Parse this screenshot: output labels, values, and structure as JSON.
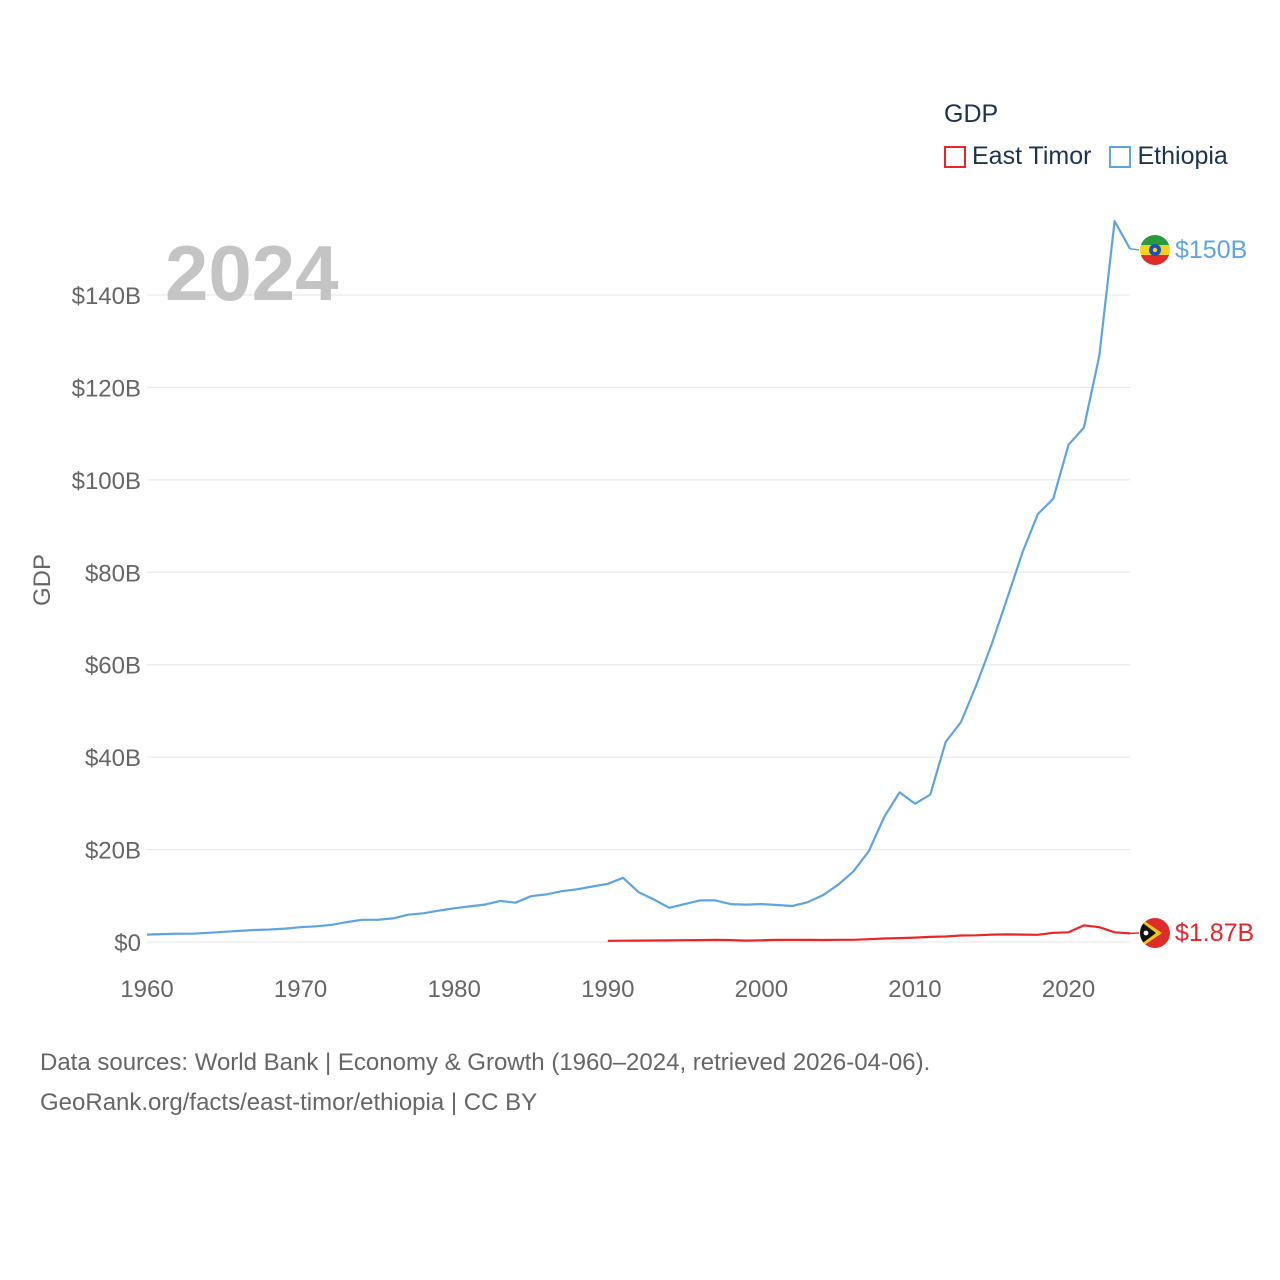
{
  "legend": {
    "title": "GDP",
    "items": [
      {
        "name": "East Timor",
        "color": "#e8262a"
      },
      {
        "name": "Ethiopia",
        "color": "#5ea4e3"
      }
    ]
  },
  "year_display": "2024",
  "source_line1": "Data sources: World Bank | Economy & Growth (1960–2024, retrieved 2026-04-06).",
  "source_line2": "GeoRank.org/facts/east-timor/ethiopia | CC BY",
  "chart_data": {
    "type": "line",
    "ylabel": "GDP",
    "xlabel": "",
    "xlim": [
      1960,
      2024
    ],
    "ylim": [
      0,
      150
    ],
    "x_ticks": [
      "1960",
      "1970",
      "1980",
      "1990",
      "2000",
      "2010",
      "2020"
    ],
    "y_ticks": [
      "$0",
      "$20B",
      "$40B",
      "$60B",
      "$80B",
      "$100B",
      "$120B",
      "$140B"
    ],
    "y_tick_values": [
      0,
      20,
      40,
      60,
      80,
      100,
      120,
      140
    ],
    "units": "billion USD",
    "series": [
      {
        "name": "Ethiopia",
        "color": "#5ea4e3",
        "end_label": "$150B",
        "flag": "ethiopia-flag",
        "x": [
          1960,
          1961,
          1962,
          1963,
          1964,
          1965,
          1966,
          1967,
          1968,
          1969,
          1970,
          1971,
          1972,
          1973,
          1974,
          1975,
          1976,
          1977,
          1978,
          1979,
          1980,
          1981,
          1982,
          1983,
          1984,
          1985,
          1986,
          1987,
          1988,
          1989,
          1990,
          1991,
          1992,
          1993,
          1994,
          1995,
          1996,
          1997,
          1998,
          1999,
          2000,
          2001,
          2002,
          2003,
          2004,
          2005,
          2006,
          2007,
          2008,
          2009,
          2010,
          2011,
          2012,
          2013,
          2014,
          2015,
          2016,
          2017,
          2018,
          2019,
          2020,
          2021,
          2022,
          2023,
          2024
        ],
        "values": [
          1.6,
          1.7,
          1.8,
          1.8,
          2.0,
          2.2,
          2.4,
          2.6,
          2.7,
          2.9,
          3.2,
          3.4,
          3.7,
          4.3,
          4.8,
          4.8,
          5.1,
          5.9,
          6.2,
          6.8,
          7.3,
          7.7,
          8.1,
          8.9,
          8.5,
          9.9,
          10.3,
          11.0,
          11.4,
          12.0,
          12.6,
          13.9,
          10.8,
          9.2,
          7.4,
          8.2,
          9.0,
          9.0,
          8.2,
          8.1,
          8.2,
          8.0,
          7.8,
          8.6,
          10.1,
          12.4,
          15.3,
          19.7,
          27.1,
          32.4,
          29.9,
          31.9,
          43.3,
          47.6,
          55.6,
          64.5,
          74.3,
          84.3,
          92.6,
          95.9,
          107.6,
          111.3,
          126.8,
          156.0,
          150.0
        ]
      },
      {
        "name": "East Timor",
        "color": "#e8262a",
        "end_label": "$1.87B",
        "flag": "east-timor-flag",
        "x": [
          1990,
          1991,
          1992,
          1993,
          1994,
          1995,
          1996,
          1997,
          1998,
          1999,
          2000,
          2001,
          2002,
          2003,
          2004,
          2005,
          2006,
          2007,
          2008,
          2009,
          2010,
          2011,
          2012,
          2013,
          2014,
          2015,
          2016,
          2017,
          2018,
          2019,
          2020,
          2021,
          2022,
          2023,
          2024
        ],
        "values": [
          0.25,
          0.28,
          0.3,
          0.32,
          0.35,
          0.38,
          0.42,
          0.45,
          0.42,
          0.3,
          0.37,
          0.45,
          0.46,
          0.45,
          0.44,
          0.47,
          0.48,
          0.6,
          0.75,
          0.85,
          0.95,
          1.1,
          1.2,
          1.4,
          1.45,
          1.6,
          1.65,
          1.6,
          1.55,
          2.0,
          2.1,
          3.6,
          3.2,
          2.1,
          1.87
        ]
      }
    ]
  }
}
